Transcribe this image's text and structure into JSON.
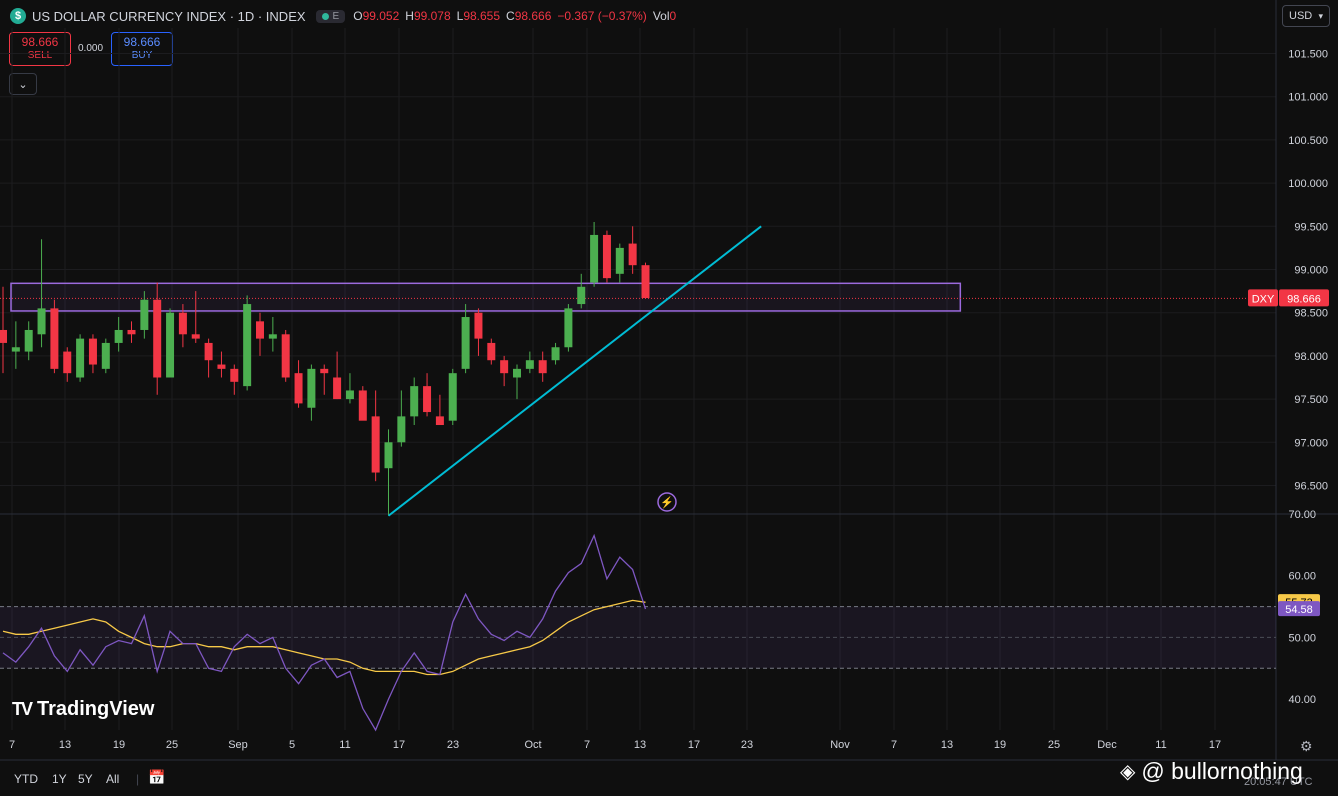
{
  "header": {
    "logo_glyph": "$",
    "title": "US DOLLAR CURRENCY INDEX · 1D · INDEX",
    "exchange_badge": "E",
    "ohlc": [
      {
        "label": "O",
        "value": "99.052"
      },
      {
        "label": "H",
        "value": "99.078"
      },
      {
        "label": "L",
        "value": "98.655"
      },
      {
        "label": "C",
        "value": "98.666"
      }
    ],
    "change": "−0.367 (−0.37%)",
    "volume_label": "Vol",
    "volume_value": "0"
  },
  "trade": {
    "sell_price": "98.666",
    "sell_label": "SELL",
    "spread": "0.000",
    "buy_price": "98.666",
    "buy_label": "BUY",
    "collapse_icon": "chevron-down-icon"
  },
  "currency_selector": {
    "value": "USD",
    "icon": "chevron-down-icon"
  },
  "branding": {
    "name": "TradingView",
    "mark": "TV"
  },
  "range_buttons": [
    "YTD",
    "1Y",
    "5Y",
    "All"
  ],
  "watermark": "@ bullornothing",
  "clock": "20:05:47 UTC",
  "colors": {
    "up": "#4caf50",
    "down": "#f23645",
    "trendline": "#00bcd4",
    "zone": "#9c6ade",
    "rsi": "#7e57c2",
    "rsi_ma": "#f7c948",
    "price_tag": "#f23645"
  },
  "chart_data": [
    {
      "type": "candlestick",
      "title": "US DOLLAR CURRENCY INDEX · 1D · INDEX",
      "symbol": "DXY",
      "last_price": "98.666",
      "y_ticks": [
        "101.500",
        "101.000",
        "100.500",
        "100.000",
        "99.500",
        "99.000",
        "98.500",
        "98.000",
        "97.500",
        "97.000",
        "96.500"
      ],
      "ylim": [
        96.17,
        101.83
      ],
      "x_labels": [
        "7",
        "13",
        "19",
        "25",
        "Sep",
        "5",
        "11",
        "17",
        "23",
        "Oct",
        "7",
        "13",
        "17",
        "23",
        "Nov",
        "7",
        "13",
        "19",
        "25",
        "Dec",
        "11",
        "17"
      ],
      "candles": [
        {
          "o": 98.3,
          "h": 98.8,
          "l": 97.8,
          "c": 98.15
        },
        {
          "o": 98.05,
          "h": 98.4,
          "l": 97.85,
          "c": 98.1
        },
        {
          "o": 98.05,
          "h": 98.4,
          "l": 97.95,
          "c": 98.3
        },
        {
          "o": 98.25,
          "h": 99.35,
          "l": 98.1,
          "c": 98.55
        },
        {
          "o": 98.55,
          "h": 98.65,
          "l": 97.8,
          "c": 97.85
        },
        {
          "o": 98.05,
          "h": 98.1,
          "l": 97.7,
          "c": 97.8
        },
        {
          "o": 97.75,
          "h": 98.25,
          "l": 97.7,
          "c": 98.2
        },
        {
          "o": 98.2,
          "h": 98.25,
          "l": 97.8,
          "c": 97.9
        },
        {
          "o": 97.85,
          "h": 98.2,
          "l": 97.8,
          "c": 98.15
        },
        {
          "o": 98.15,
          "h": 98.45,
          "l": 98.05,
          "c": 98.3
        },
        {
          "o": 98.3,
          "h": 98.4,
          "l": 98.15,
          "c": 98.25
        },
        {
          "o": 98.3,
          "h": 98.75,
          "l": 98.2,
          "c": 98.65
        },
        {
          "o": 98.65,
          "h": 98.85,
          "l": 97.55,
          "c": 97.75
        },
        {
          "o": 97.75,
          "h": 98.55,
          "l": 97.75,
          "c": 98.5
        },
        {
          "o": 98.5,
          "h": 98.6,
          "l": 98.1,
          "c": 98.25
        },
        {
          "o": 98.25,
          "h": 98.75,
          "l": 98.15,
          "c": 98.2
        },
        {
          "o": 98.15,
          "h": 98.2,
          "l": 97.75,
          "c": 97.95
        },
        {
          "o": 97.9,
          "h": 98.05,
          "l": 97.75,
          "c": 97.85
        },
        {
          "o": 97.85,
          "h": 97.9,
          "l": 97.55,
          "c": 97.7
        },
        {
          "o": 97.65,
          "h": 98.7,
          "l": 97.6,
          "c": 98.6
        },
        {
          "o": 98.4,
          "h": 98.5,
          "l": 98.0,
          "c": 98.2
        },
        {
          "o": 98.2,
          "h": 98.45,
          "l": 98.05,
          "c": 98.25
        },
        {
          "o": 98.25,
          "h": 98.3,
          "l": 97.7,
          "c": 97.75
        },
        {
          "o": 97.8,
          "h": 97.95,
          "l": 97.4,
          "c": 97.45
        },
        {
          "o": 97.4,
          "h": 97.9,
          "l": 97.25,
          "c": 97.85
        },
        {
          "o": 97.85,
          "h": 97.9,
          "l": 97.55,
          "c": 97.8
        },
        {
          "o": 97.75,
          "h": 98.05,
          "l": 97.5,
          "c": 97.5
        },
        {
          "o": 97.5,
          "h": 97.8,
          "l": 97.45,
          "c": 97.6
        },
        {
          "o": 97.6,
          "h": 97.65,
          "l": 97.3,
          "c": 97.25
        },
        {
          "o": 97.3,
          "h": 97.6,
          "l": 96.55,
          "c": 96.65
        },
        {
          "o": 96.7,
          "h": 97.15,
          "l": 96.15,
          "c": 97.0
        },
        {
          "o": 97.0,
          "h": 97.6,
          "l": 96.95,
          "c": 97.3
        },
        {
          "o": 97.3,
          "h": 97.75,
          "l": 97.2,
          "c": 97.65
        },
        {
          "o": 97.65,
          "h": 97.8,
          "l": 97.3,
          "c": 97.35
        },
        {
          "o": 97.3,
          "h": 97.55,
          "l": 97.2,
          "c": 97.2
        },
        {
          "o": 97.25,
          "h": 97.85,
          "l": 97.2,
          "c": 97.8
        },
        {
          "o": 97.85,
          "h": 98.6,
          "l": 97.8,
          "c": 98.45
        },
        {
          "o": 98.5,
          "h": 98.55,
          "l": 98.0,
          "c": 98.2
        },
        {
          "o": 98.15,
          "h": 98.2,
          "l": 97.9,
          "c": 97.95
        },
        {
          "o": 97.95,
          "h": 98.0,
          "l": 97.65,
          "c": 97.8
        },
        {
          "o": 97.75,
          "h": 97.9,
          "l": 97.5,
          "c": 97.85
        },
        {
          "o": 97.85,
          "h": 98.05,
          "l": 97.8,
          "c": 97.95
        },
        {
          "o": 97.95,
          "h": 98.05,
          "l": 97.7,
          "c": 97.8
        },
        {
          "o": 97.95,
          "h": 98.15,
          "l": 97.9,
          "c": 98.1
        },
        {
          "o": 98.1,
          "h": 98.6,
          "l": 98.05,
          "c": 98.55
        },
        {
          "o": 98.6,
          "h": 98.95,
          "l": 98.55,
          "c": 98.8
        },
        {
          "o": 98.85,
          "h": 99.55,
          "l": 98.8,
          "c": 99.4
        },
        {
          "o": 99.4,
          "h": 99.45,
          "l": 98.85,
          "c": 98.9
        },
        {
          "o": 98.95,
          "h": 99.3,
          "l": 98.85,
          "c": 99.25
        },
        {
          "o": 99.3,
          "h": 99.5,
          "l": 98.95,
          "c": 99.05
        },
        {
          "o": 99.05,
          "h": 99.08,
          "l": 98.66,
          "c": 98.67
        }
      ],
      "support_zone": [
        98.52,
        98.84
      ],
      "trendline": [
        {
          "bar": 30,
          "price": 96.15
        },
        {
          "bar": 59,
          "price": 99.5
        }
      ]
    },
    {
      "type": "line",
      "title": "RSI",
      "y_ticks": [
        "70.00",
        "60.00",
        "50.00",
        "40.00"
      ],
      "ylim": [
        35,
        70
      ],
      "band": [
        45,
        55
      ],
      "rsi_value": "54.58",
      "ma_value": "55.73",
      "series": [
        {
          "values": [
            47.5,
            46.0,
            48.5,
            51.5,
            47.0,
            44.5,
            48.0,
            45.5,
            48.5,
            49.5,
            49.0,
            53.5,
            44.5,
            51.0,
            49.0,
            49.0,
            45.0,
            44.5,
            48.5,
            50.5,
            49.0,
            50.0,
            45.0,
            42.5,
            45.5,
            46.5,
            43.5,
            44.5,
            38.5,
            35.0,
            40.0,
            44.5,
            47.5,
            44.5,
            44.0,
            52.5,
            57.0,
            53.0,
            50.5,
            49.5,
            51.0,
            50.0,
            53.0,
            57.5,
            60.5,
            62.0,
            66.5,
            59.5,
            63.0,
            61.0,
            54.6
          ]
        },
        {
          "values": [
            51.0,
            50.5,
            50.5,
            51.0,
            51.5,
            52.0,
            52.5,
            53.0,
            52.5,
            51.0,
            50.0,
            49.0,
            48.5,
            48.5,
            49.0,
            49.0,
            48.5,
            48.5,
            48.0,
            48.5,
            48.5,
            48.5,
            48.0,
            47.5,
            47.0,
            46.5,
            46.5,
            46.0,
            45.0,
            44.5,
            44.5,
            44.5,
            44.5,
            44.0,
            44.0,
            44.5,
            45.5,
            46.5,
            47.0,
            47.5,
            48.0,
            48.5,
            49.5,
            51.0,
            52.5,
            53.5,
            54.5,
            55.0,
            55.5,
            56.0,
            55.7
          ]
        }
      ]
    }
  ]
}
